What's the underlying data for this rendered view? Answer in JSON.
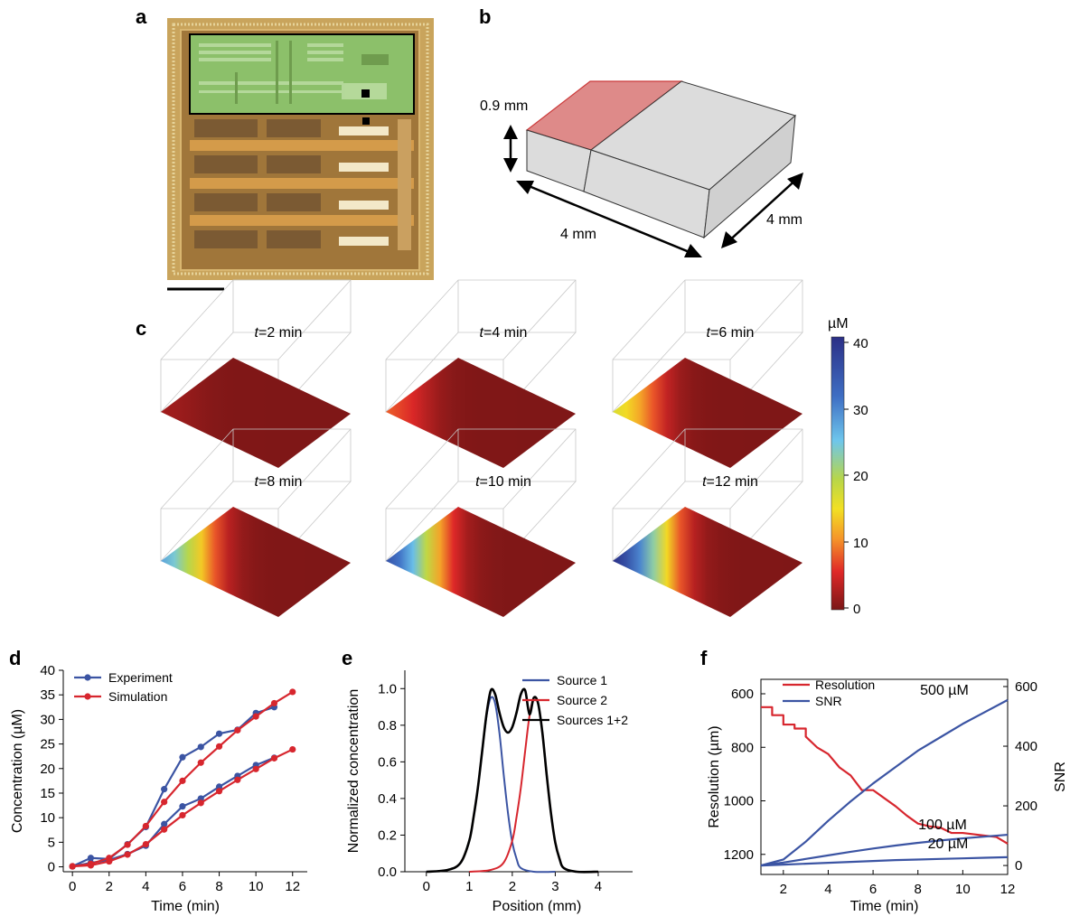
{
  "panels": {
    "a": "a",
    "b": "b",
    "c": "c",
    "d": "d",
    "e": "e",
    "f": "f"
  },
  "panel_b": {
    "height_label": "0.9 mm",
    "length_label": "4 mm",
    "depth_label": "4 mm"
  },
  "panel_c": {
    "time_prefix": "t",
    "snapshots": [
      {
        "minutes": 2,
        "label": "=2 min",
        "left_conc": 2
      },
      {
        "minutes": 4,
        "label": "=4 min",
        "left_conc": 8
      },
      {
        "minutes": 6,
        "label": "=6 min",
        "left_conc": 17
      },
      {
        "minutes": 8,
        "label": "=8 min",
        "left_conc": 28
      },
      {
        "minutes": 10,
        "label": "=10 min",
        "left_conc": 36
      },
      {
        "minutes": 12,
        "label": "=12 min",
        "left_conc": 41
      }
    ],
    "colorbar_unit": "µM",
    "colorbar_ticks": [
      "40",
      "30",
      "20",
      "10",
      "0"
    ],
    "colorbar_range": [
      0,
      40
    ]
  },
  "chart_data": [
    {
      "panel": "d",
      "type": "line",
      "xlabel": "Time (min)",
      "ylabel": "Concentration (µM)",
      "xlim": [
        -0.5,
        12.8
      ],
      "ylim": [
        -1,
        40
      ],
      "xticks": [
        "0",
        "2",
        "4",
        "6",
        "8",
        "10",
        "12"
      ],
      "yticks": [
        "0",
        "5",
        "10",
        "15",
        "20",
        "25",
        "30",
        "35",
        "40"
      ],
      "legend_position": "top-left",
      "series": [
        {
          "name": "Experiment",
          "color": "#3b54a3",
          "x": [
            0,
            1,
            2,
            3,
            4,
            5,
            6,
            7,
            8,
            9,
            10,
            11
          ],
          "y": [
            0.1,
            1.8,
            1.6,
            4.6,
            8.1,
            15.8,
            22.3,
            24.4,
            27.1,
            27.9,
            31.3,
            32.5
          ]
        },
        {
          "name": "Experiment",
          "color": "#3b54a3",
          "x": [
            0,
            1,
            2,
            3,
            4,
            5,
            6,
            7,
            8,
            9,
            10,
            11
          ],
          "y": [
            0.1,
            0.8,
            1.4,
            2.6,
            4.3,
            8.7,
            12.3,
            13.9,
            16.3,
            18.5,
            20.7,
            22.2
          ]
        },
        {
          "name": "Simulation",
          "color": "#d7262e",
          "x": [
            0,
            1,
            2,
            3,
            4,
            5,
            6,
            7,
            8,
            9,
            10,
            11,
            12
          ],
          "y": [
            0.1,
            0.6,
            1.8,
            4.5,
            8.3,
            13.2,
            17.5,
            21.2,
            24.5,
            27.8,
            30.6,
            33.3,
            35.6
          ]
        },
        {
          "name": "Simulation",
          "color": "#d7262e",
          "x": [
            0,
            1,
            2,
            3,
            4,
            5,
            6,
            7,
            8,
            9,
            10,
            11,
            12
          ],
          "y": [
            0.1,
            0.3,
            1.1,
            2.5,
            4.6,
            7.6,
            10.5,
            13.0,
            15.4,
            17.7,
            19.9,
            22.1,
            23.9
          ]
        }
      ],
      "legend": [
        "Experiment",
        "Simulation"
      ]
    },
    {
      "panel": "e",
      "type": "line",
      "xlabel": "Position (mm)",
      "ylabel": "Normalized concentration",
      "xlim": [
        -0.5,
        4.8
      ],
      "ylim": [
        0,
        1.1
      ],
      "xticks": [
        "0",
        "1",
        "2",
        "3",
        "4"
      ],
      "yticks": [
        "0.0",
        "0.2",
        "0.4",
        "0.6",
        "0.8",
        "1.0"
      ],
      "legend_position": "top-right",
      "series": [
        {
          "name": "Source 1",
          "color": "#3b54a3",
          "x": [
            0.0,
            0.5,
            0.8,
            1.0,
            1.1,
            1.2,
            1.3,
            1.4,
            1.5,
            1.6,
            1.7,
            1.8,
            1.9,
            2.0,
            2.1,
            2.2,
            2.5,
            3.0
          ],
          "y": [
            0.0,
            0.01,
            0.05,
            0.17,
            0.3,
            0.46,
            0.66,
            0.85,
            0.95,
            0.92,
            0.76,
            0.53,
            0.32,
            0.16,
            0.07,
            0.02,
            0.0,
            0.0
          ]
        },
        {
          "name": "Source 2",
          "color": "#d7262e",
          "x": [
            1.0,
            1.5,
            1.8,
            2.0,
            2.1,
            2.2,
            2.3,
            2.4,
            2.5,
            2.6,
            2.7,
            2.8,
            2.9,
            3.0,
            3.1,
            3.2,
            3.5,
            4.0
          ],
          "y": [
            0.0,
            0.01,
            0.05,
            0.17,
            0.3,
            0.46,
            0.66,
            0.85,
            0.95,
            0.92,
            0.76,
            0.53,
            0.32,
            0.16,
            0.07,
            0.02,
            0.0,
            0.0
          ]
        },
        {
          "name": "Sources 1+2",
          "color": "#000000",
          "x": [
            0.0,
            0.5,
            0.8,
            1.0,
            1.1,
            1.2,
            1.3,
            1.4,
            1.5,
            1.6,
            1.7,
            1.8,
            1.9,
            2.0,
            2.1,
            2.2,
            2.3,
            2.4,
            2.5,
            2.6,
            2.7,
            2.8,
            2.9,
            3.0,
            3.1,
            3.2,
            3.5,
            4.0
          ],
          "y": [
            0.0,
            0.01,
            0.05,
            0.17,
            0.3,
            0.46,
            0.66,
            0.86,
            0.99,
            0.97,
            0.87,
            0.79,
            0.76,
            0.79,
            0.87,
            0.97,
            0.99,
            0.86,
            0.95,
            0.92,
            0.76,
            0.53,
            0.32,
            0.16,
            0.07,
            0.02,
            0.0,
            0.0
          ]
        }
      ]
    },
    {
      "panel": "f",
      "type": "line",
      "xlabel": "Time (min)",
      "ylabel": "Resolution (µm)",
      "y2label": "SNR",
      "xlim": [
        1,
        12
      ],
      "ylim_reversed": [
        600,
        1275
      ],
      "y2lim": [
        -30,
        600
      ],
      "xticks": [
        "2",
        "4",
        "6",
        "8",
        "10",
        "12"
      ],
      "yticks": [
        "600",
        "800",
        "1000",
        "1200"
      ],
      "y2ticks": [
        "0",
        "200",
        "400",
        "600"
      ],
      "legend_position": "top-left",
      "series": [
        {
          "name": "Resolution",
          "color": "#d7262e",
          "axis": "left",
          "x": [
            1,
            1.5,
            1.5,
            2,
            2,
            2.5,
            2.5,
            3,
            3,
            3.5,
            4,
            4.5,
            5,
            5.5,
            5.5,
            6,
            6.5,
            7,
            7.5,
            8,
            8.5,
            9,
            9.5,
            10,
            10.5,
            11,
            11.5,
            12
          ],
          "y": [
            650,
            650,
            680,
            680,
            715,
            715,
            730,
            730,
            760,
            800,
            825,
            875,
            905,
            960,
            960,
            960,
            990,
            1020,
            1055,
            1085,
            1095,
            1100,
            1120,
            1120,
            1125,
            1130,
            1135,
            1160
          ]
        },
        {
          "name": "SNR",
          "color": "#3b54a3",
          "axis": "right",
          "label": "500 µM",
          "x": [
            1,
            2,
            3,
            4,
            5,
            6,
            7,
            8,
            9,
            10,
            11,
            12
          ],
          "y": [
            0,
            20,
            80,
            150,
            215,
            275,
            330,
            385,
            430,
            475,
            515,
            555
          ]
        },
        {
          "name": "SNR",
          "color": "#3b54a3",
          "axis": "right",
          "label": "100 µM",
          "x": [
            1,
            2,
            3,
            4,
            5,
            6,
            7,
            8,
            9,
            10,
            11,
            12
          ],
          "y": [
            0,
            10,
            22,
            34,
            46,
            57,
            67,
            76,
            84,
            91,
            97,
            103
          ]
        },
        {
          "name": "SNR",
          "color": "#3b54a3",
          "axis": "right",
          "label": "20 µM",
          "x": [
            1,
            2,
            3,
            4,
            5,
            6,
            7,
            8,
            9,
            10,
            11,
            12
          ],
          "y": [
            0,
            3,
            6,
            9,
            12,
            15,
            18,
            20,
            22,
            24,
            26,
            28
          ]
        }
      ],
      "legend": [
        "Resolution",
        "SNR"
      ]
    }
  ]
}
